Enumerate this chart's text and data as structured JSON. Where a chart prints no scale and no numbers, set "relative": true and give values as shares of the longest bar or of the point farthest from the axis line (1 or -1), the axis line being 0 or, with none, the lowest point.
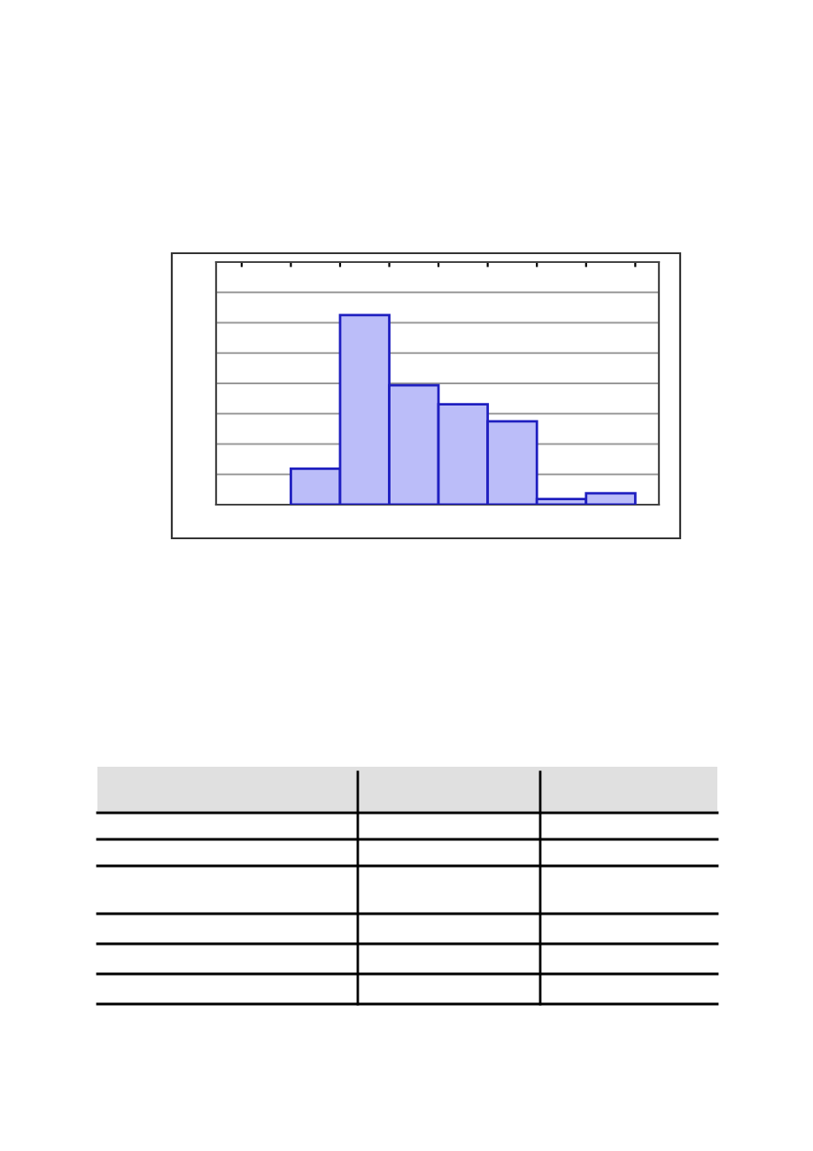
{
  "chart_data": {
    "type": "bar",
    "relative": true,
    "categories": [
      null,
      null,
      null,
      null,
      null,
      null,
      null
    ],
    "values": [
      0.19,
      1,
      0.63,
      0.53,
      0.44,
      0.03,
      0.06
    ],
    "color": "#bbbdf9",
    "grid": "y",
    "tick_labels": false
  }
}
